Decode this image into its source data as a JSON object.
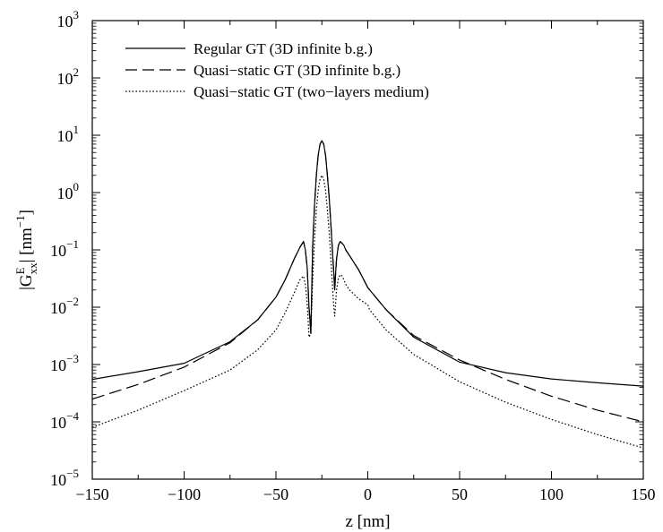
{
  "chart_data": {
    "type": "line",
    "xlabel": "z [nm]",
    "ylabel": "|G",
    "ylabel_sup": "E",
    "ylabel_sub": "xx",
    "ylabel_tail": "| [nm",
    "ylabel_unit_sup": "−1",
    "ylabel_end": "]",
    "xlim": [
      -150,
      150
    ],
    "ylim": [
      1e-05,
      1000
    ],
    "yscale": "log",
    "grid": false,
    "legend_position": "top-left",
    "x_ticks": [
      {
        "value": -150,
        "label": "−150"
      },
      {
        "value": -100,
        "label": "−100"
      },
      {
        "value": -50,
        "label": "−50"
      },
      {
        "value": 0,
        "label": "0"
      },
      {
        "value": 50,
        "label": "50"
      },
      {
        "value": 100,
        "label": "100"
      },
      {
        "value": 150,
        "label": "150"
      }
    ],
    "y_ticks": [
      {
        "value": 1e-05,
        "base": "10",
        "exp": "−5"
      },
      {
        "value": 0.0001,
        "base": "10",
        "exp": "−4"
      },
      {
        "value": 0.001,
        "base": "10",
        "exp": "−3"
      },
      {
        "value": 0.01,
        "base": "10",
        "exp": "−2"
      },
      {
        "value": 0.1,
        "base": "10",
        "exp": "−1"
      },
      {
        "value": 1,
        "base": "10",
        "exp": "0"
      },
      {
        "value": 10,
        "base": "10",
        "exp": "1"
      },
      {
        "value": 100,
        "base": "10",
        "exp": "2"
      },
      {
        "value": 1000,
        "base": "10",
        "exp": "3"
      }
    ],
    "series": [
      {
        "name": "Regular GT (3D infinite b.g.)",
        "style": "solid",
        "color": "#000000",
        "x": [
          -150,
          -125,
          -100,
          -75,
          -60,
          -50,
          -45,
          -40,
          -37,
          -35,
          -34,
          -33,
          -32,
          -31,
          -30,
          -29,
          -28,
          -27,
          -26,
          -25,
          -24,
          -23,
          -22,
          -21,
          -20,
          -19,
          -18.5,
          -18,
          -17.5,
          -17,
          -16,
          -15,
          -14,
          -13,
          -12,
          -10,
          -5,
          0,
          10,
          25,
          50,
          75,
          100,
          125,
          150
        ],
        "y": [
          0.00055,
          0.00075,
          0.00105,
          0.0025,
          0.006,
          0.015,
          0.03,
          0.07,
          0.11,
          0.14,
          0.1,
          0.05,
          0.01,
          0.0035,
          0.12,
          0.6,
          2.0,
          4.5,
          7.0,
          8.0,
          7.0,
          4.5,
          2.0,
          0.8,
          0.25,
          0.07,
          0.04,
          0.02,
          0.04,
          0.07,
          0.12,
          0.14,
          0.13,
          0.12,
          0.1,
          0.08,
          0.045,
          0.022,
          0.009,
          0.003,
          0.0011,
          0.00072,
          0.00056,
          0.00048,
          0.00042
        ]
      },
      {
        "name": "Quasi−static GT (3D infinite b.g.)",
        "style": "dashed",
        "color": "#000000",
        "x": [
          -150,
          -125,
          -100,
          -75,
          -60,
          -50,
          -45,
          -40,
          -37,
          -35,
          -34,
          -33,
          -32,
          -31,
          -30,
          -29,
          -28,
          -27,
          -26,
          -25,
          -24,
          -23,
          -22,
          -21,
          -20,
          -19,
          -18.5,
          -18,
          -17.5,
          -17,
          -16,
          -15,
          -14,
          -13,
          -12,
          -10,
          -5,
          0,
          10,
          25,
          50,
          75,
          100,
          125,
          150
        ],
        "y": [
          0.00025,
          0.00045,
          0.0009,
          0.0024,
          0.006,
          0.015,
          0.03,
          0.07,
          0.11,
          0.14,
          0.1,
          0.05,
          0.01,
          0.0035,
          0.12,
          0.6,
          2.0,
          4.5,
          7.0,
          8.0,
          7.0,
          4.5,
          2.0,
          0.8,
          0.25,
          0.07,
          0.04,
          0.02,
          0.04,
          0.07,
          0.12,
          0.14,
          0.13,
          0.12,
          0.1,
          0.08,
          0.045,
          0.022,
          0.009,
          0.0032,
          0.0012,
          0.00055,
          0.00028,
          0.00016,
          0.0001
        ]
      },
      {
        "name": "Quasi−static GT (two−layers medium)",
        "style": "dotted",
        "color": "#000000",
        "x": [
          -150,
          -125,
          -100,
          -75,
          -60,
          -50,
          -45,
          -40,
          -37,
          -35,
          -34,
          -33,
          -32,
          -31,
          -30,
          -29,
          -28,
          -27,
          -26,
          -25,
          -24,
          -23,
          -22,
          -21,
          -20,
          -19,
          -18.5,
          -18,
          -17.5,
          -17,
          -16,
          -15,
          -14,
          -13,
          -12,
          -10,
          -5,
          0,
          1,
          10,
          25,
          50,
          75,
          100,
          125,
          150
        ],
        "y": [
          8e-05,
          0.00016,
          0.00035,
          0.0008,
          0.0018,
          0.004,
          0.008,
          0.018,
          0.03,
          0.035,
          0.025,
          0.012,
          0.003,
          0.0035,
          0.03,
          0.15,
          0.5,
          1.1,
          1.7,
          2.0,
          1.7,
          1.1,
          0.5,
          0.2,
          0.06,
          0.018,
          0.01,
          0.007,
          0.012,
          0.02,
          0.032,
          0.037,
          0.035,
          0.03,
          0.025,
          0.02,
          0.014,
          0.011,
          0.009,
          0.004,
          0.0015,
          0.0005,
          0.00022,
          0.00011,
          6e-05,
          3.5e-05
        ]
      }
    ]
  }
}
